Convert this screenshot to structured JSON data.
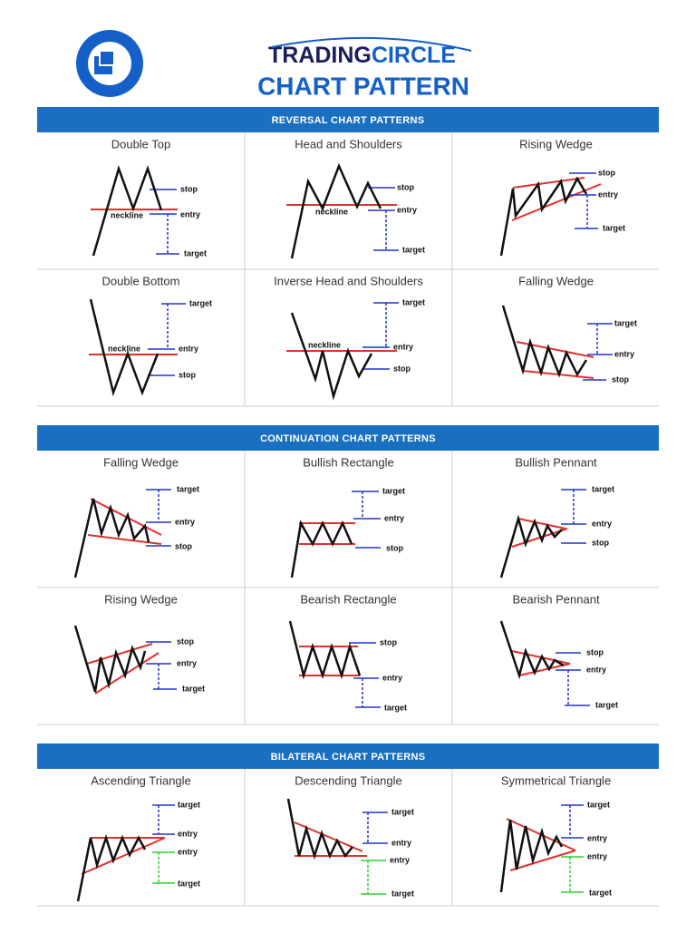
{
  "header": {
    "brand_a": "TRADING",
    "brand_b": "CIRCLE",
    "title": "CHART PATTERN"
  },
  "sections": [
    {
      "title": "REVERSAL CHART PATTERNS",
      "patterns": [
        {
          "name": "Double Top",
          "labels": [
            "stop",
            "neckline",
            "entry",
            "target"
          ]
        },
        {
          "name": "Head and Shoulders",
          "labels": [
            "stop",
            "neckline",
            "entry",
            "target"
          ]
        },
        {
          "name": "Rising Wedge",
          "labels": [
            "stop",
            "entry",
            "target"
          ]
        },
        {
          "name": "Double Bottom",
          "labels": [
            "target",
            "neckline",
            "entry",
            "stop"
          ]
        },
        {
          "name": "Inverse Head and Shoulders",
          "labels": [
            "target",
            "neckline",
            "entry",
            "stop"
          ]
        },
        {
          "name": "Falling Wedge",
          "labels": [
            "target",
            "entry",
            "stop"
          ]
        }
      ]
    },
    {
      "title": "CONTINUATION CHART PATTERNS",
      "patterns": [
        {
          "name": "Falling Wedge",
          "labels": [
            "target",
            "entry",
            "stop"
          ]
        },
        {
          "name": "Bullish Rectangle",
          "labels": [
            "target",
            "entry",
            "stop"
          ]
        },
        {
          "name": "Bullish Pennant",
          "labels": [
            "target",
            "entry",
            "stop"
          ]
        },
        {
          "name": "Rising Wedge",
          "labels": [
            "stop",
            "entry",
            "target"
          ]
        },
        {
          "name": "Bearish Rectangle",
          "labels": [
            "stop",
            "entry",
            "target"
          ]
        },
        {
          "name": "Bearish Pennant",
          "labels": [
            "stop",
            "entry",
            "target"
          ]
        }
      ]
    },
    {
      "title": "BILATERAL CHART PATTERNS",
      "patterns": [
        {
          "name": "Ascending Triangle",
          "labels": [
            "target",
            "entry",
            "entry",
            "target"
          ]
        },
        {
          "name": "Descending Triangle",
          "labels": [
            "target",
            "entry",
            "entry",
            "target"
          ]
        },
        {
          "name": "Symmetrical Triangle",
          "labels": [
            "target",
            "entry",
            "entry",
            "target"
          ]
        }
      ]
    }
  ]
}
